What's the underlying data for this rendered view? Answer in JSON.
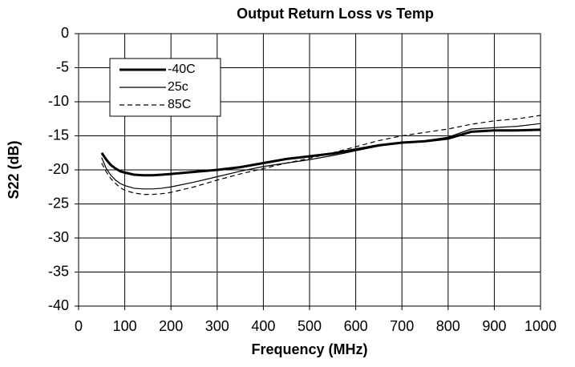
{
  "chart_data": {
    "type": "line",
    "title": "Output Return Loss vs Temp",
    "xlabel": "Frequency (MHz)",
    "ylabel": "S22 (dB)",
    "x": [
      50,
      60,
      70,
      80,
      90,
      100,
      120,
      140,
      160,
      180,
      200,
      250,
      300,
      350,
      400,
      450,
      500,
      550,
      600,
      650,
      700,
      750,
      800,
      850,
      900,
      950,
      1000
    ],
    "series": [
      {
        "name": "-40C",
        "color": "#000000",
        "width": 3,
        "dash": false,
        "values": [
          -17.5,
          -18.5,
          -19.3,
          -19.8,
          -20.2,
          -20.4,
          -20.7,
          -20.8,
          -20.8,
          -20.7,
          -20.6,
          -20.3,
          -20,
          -19.6,
          -19,
          -18.4,
          -18,
          -17.6,
          -17,
          -16.4,
          -16,
          -15.8,
          -15.4,
          -14.4,
          -14.2,
          -14.2,
          -14.1
        ]
      },
      {
        "name": "25c",
        "color": "#000000",
        "width": 1.2,
        "dash": false,
        "values": [
          -18.2,
          -19.8,
          -20.8,
          -21.5,
          -22,
          -22.3,
          -22.7,
          -22.8,
          -22.8,
          -22.7,
          -22.5,
          -21.8,
          -21,
          -20.2,
          -19.5,
          -19,
          -18.5,
          -17.9,
          -17.2,
          -16.5,
          -16,
          -15.7,
          -15.2,
          -14,
          -13.8,
          -13.6,
          -13.2
        ]
      },
      {
        "name": "85C",
        "color": "#000000",
        "width": 1.2,
        "dash": true,
        "values": [
          -19,
          -20.3,
          -21.3,
          -22,
          -22.6,
          -23,
          -23.4,
          -23.6,
          -23.6,
          -23.5,
          -23.3,
          -22.5,
          -21.5,
          -20.6,
          -19.8,
          -19,
          -18.3,
          -17.5,
          -16.6,
          -15.7,
          -15,
          -14.5,
          -14,
          -13.3,
          -12.8,
          -12.5,
          -12
        ]
      }
    ],
    "xlim": [
      0,
      1000
    ],
    "xticks": [
      0,
      100,
      200,
      300,
      400,
      500,
      600,
      700,
      800,
      900,
      1000
    ],
    "ylim": [
      -40,
      0
    ],
    "yticks": [
      0,
      -5,
      -10,
      -15,
      -20,
      -25,
      -30,
      -35,
      -40
    ],
    "grid": true,
    "legend": "upper left"
  }
}
